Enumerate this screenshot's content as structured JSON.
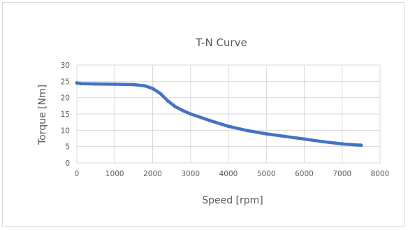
{
  "chart_data": {
    "type": "line",
    "title": "T-N Curve",
    "xlabel": "Speed [rpm]",
    "ylabel": "Torque [Nm]",
    "xlim": [
      0,
      8000
    ],
    "ylim": [
      0,
      30
    ],
    "xticks": [
      0,
      1000,
      2000,
      3000,
      4000,
      5000,
      6000,
      7000,
      8000
    ],
    "yticks": [
      0,
      5,
      10,
      15,
      20,
      25,
      30
    ],
    "grid": true,
    "legend": "none",
    "series": [
      {
        "color": "#4472c4",
        "x": [
          0,
          100,
          500,
          1000,
          1500,
          1800,
          2000,
          2200,
          2400,
          2600,
          2800,
          3000,
          3500,
          4000,
          4500,
          5000,
          5500,
          6000,
          6500,
          7000,
          7500
        ],
        "y": [
          24.5,
          24.3,
          24.2,
          24.1,
          24.0,
          23.6,
          22.8,
          21.3,
          19.0,
          17.2,
          16.0,
          15.0,
          13.0,
          11.2,
          9.9,
          8.9,
          8.1,
          7.3,
          6.5,
          5.8,
          5.4
        ]
      }
    ]
  }
}
